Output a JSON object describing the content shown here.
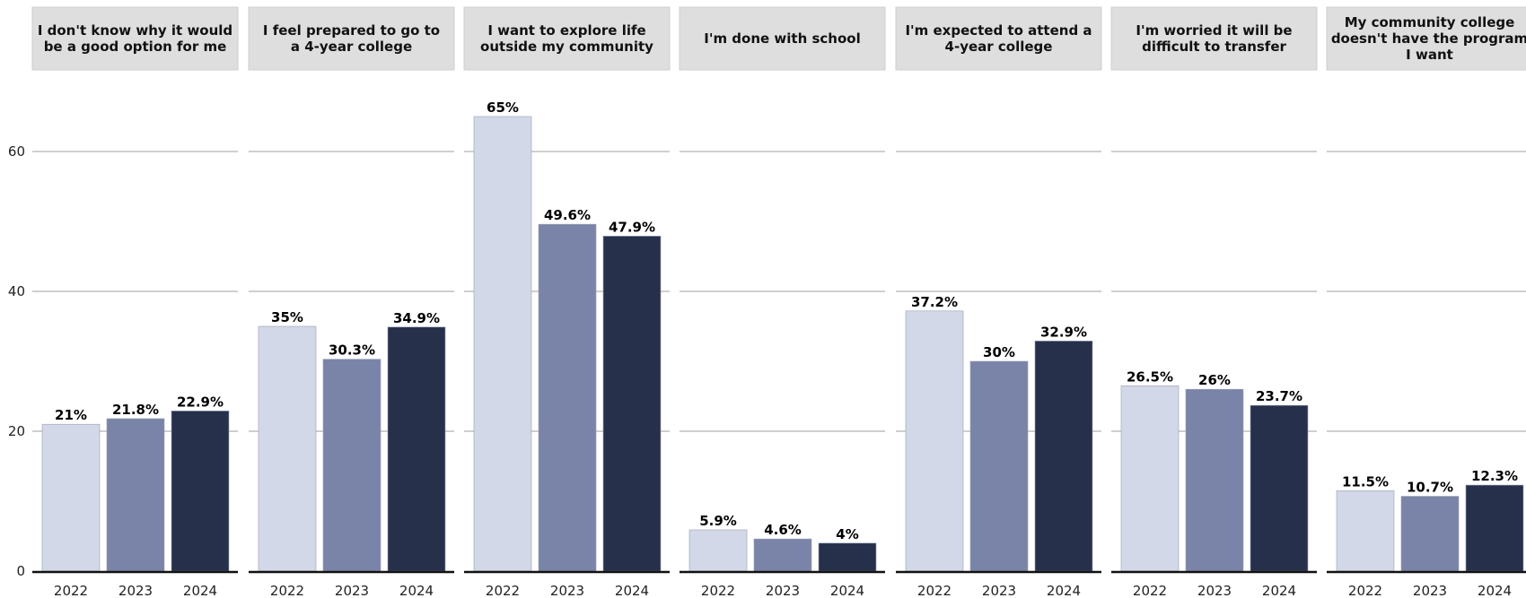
{
  "chart_data": {
    "type": "bar",
    "ylim": [
      0,
      68
    ],
    "yticks": [
      0,
      20,
      40,
      60
    ],
    "grid": true,
    "legend": "none",
    "years": [
      "2022",
      "2023",
      "2024"
    ],
    "colors": [
      "#d3d8e8",
      "#7a84a8",
      "#27304b"
    ],
    "panels": [
      {
        "title": [
          "I don't know why it would",
          "be a good option for me"
        ],
        "values": [
          21,
          21.8,
          22.9
        ],
        "labels": [
          "21%",
          "21.8%",
          "22.9%"
        ]
      },
      {
        "title": [
          "I feel prepared to go to",
          "a 4-year college"
        ],
        "values": [
          35,
          30.3,
          34.9
        ],
        "labels": [
          "35%",
          "30.3%",
          "34.9%"
        ]
      },
      {
        "title": [
          "I want to explore life",
          "outside my community"
        ],
        "values": [
          65,
          49.6,
          47.9
        ],
        "labels": [
          "65%",
          "49.6%",
          "47.9%"
        ]
      },
      {
        "title": [
          "I'm done with school"
        ],
        "values": [
          5.9,
          4.6,
          4
        ],
        "labels": [
          "5.9%",
          "4.6%",
          "4%"
        ]
      },
      {
        "title": [
          "I'm expected to attend a",
          "4-year college"
        ],
        "values": [
          37.2,
          30,
          32.9
        ],
        "labels": [
          "37.2%",
          "30%",
          "32.9%"
        ]
      },
      {
        "title": [
          "I'm worried it will be",
          "difficult to transfer"
        ],
        "values": [
          26.5,
          26,
          23.7
        ],
        "labels": [
          "26.5%",
          "26%",
          "23.7%"
        ]
      },
      {
        "title": [
          "My community college",
          "doesn't have the program",
          "I want"
        ],
        "values": [
          11.5,
          10.7,
          12.3
        ],
        "labels": [
          "11.5%",
          "10.7%",
          "12.3%"
        ]
      }
    ]
  }
}
